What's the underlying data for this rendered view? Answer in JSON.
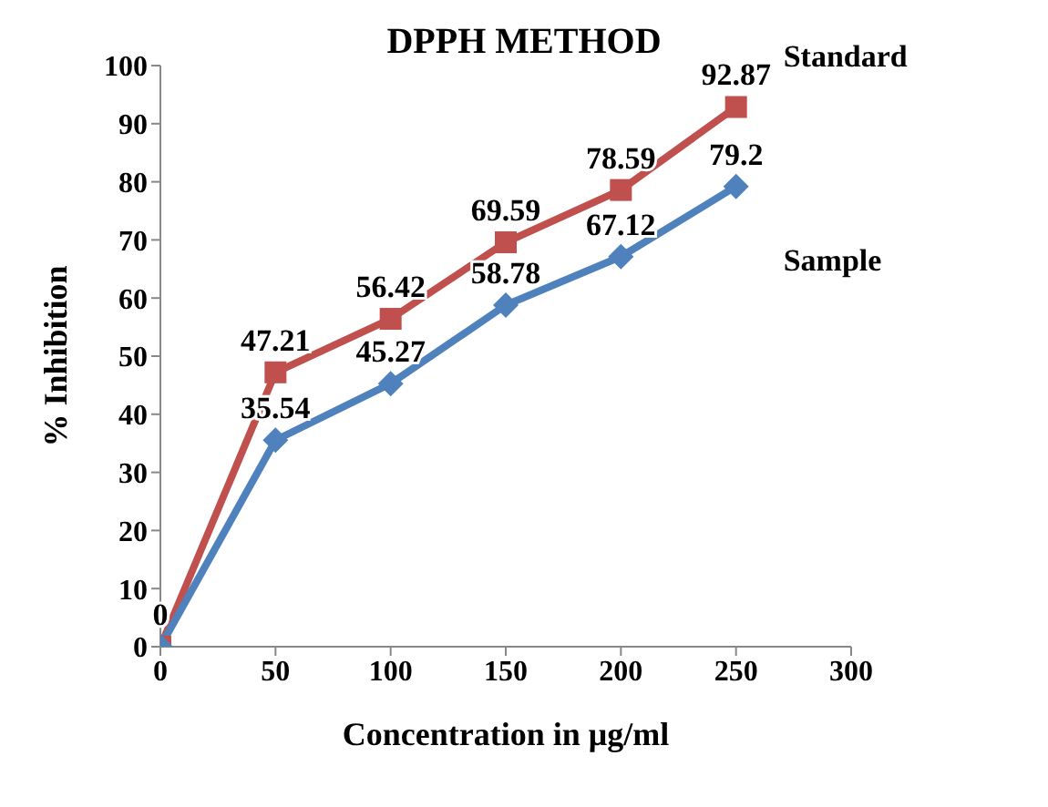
{
  "chart_data": {
    "type": "line",
    "title": "DPPH METHOD",
    "xlabel": "Concentration in μg/ml",
    "ylabel": "% Inhibition",
    "x": [
      0,
      50,
      100,
      150,
      200,
      250
    ],
    "series": [
      {
        "name": "Standard",
        "color": "#c0504d",
        "marker": "square",
        "values": [
          0,
          47.21,
          56.42,
          69.59,
          78.59,
          92.87
        ],
        "value_labels": [
          "0",
          "47.21",
          "56.42",
          "69.59",
          "78.59",
          "92.87"
        ]
      },
      {
        "name": "Sample",
        "color": "#4f81bd",
        "marker": "diamond",
        "values": [
          0,
          35.54,
          45.27,
          58.78,
          67.12,
          79.2
        ],
        "value_labels": [
          null,
          "35.54",
          "45.27",
          "58.78",
          "67.12",
          "79.2"
        ]
      }
    ],
    "xlim": [
      0,
      300
    ],
    "xticks": [
      0,
      50,
      100,
      150,
      200,
      250,
      300
    ],
    "ylim": [
      0,
      100
    ],
    "yticks": [
      0,
      10,
      20,
      30,
      40,
      50,
      60,
      70,
      80,
      90,
      100
    ],
    "grid": false,
    "line_style": "solid"
  }
}
